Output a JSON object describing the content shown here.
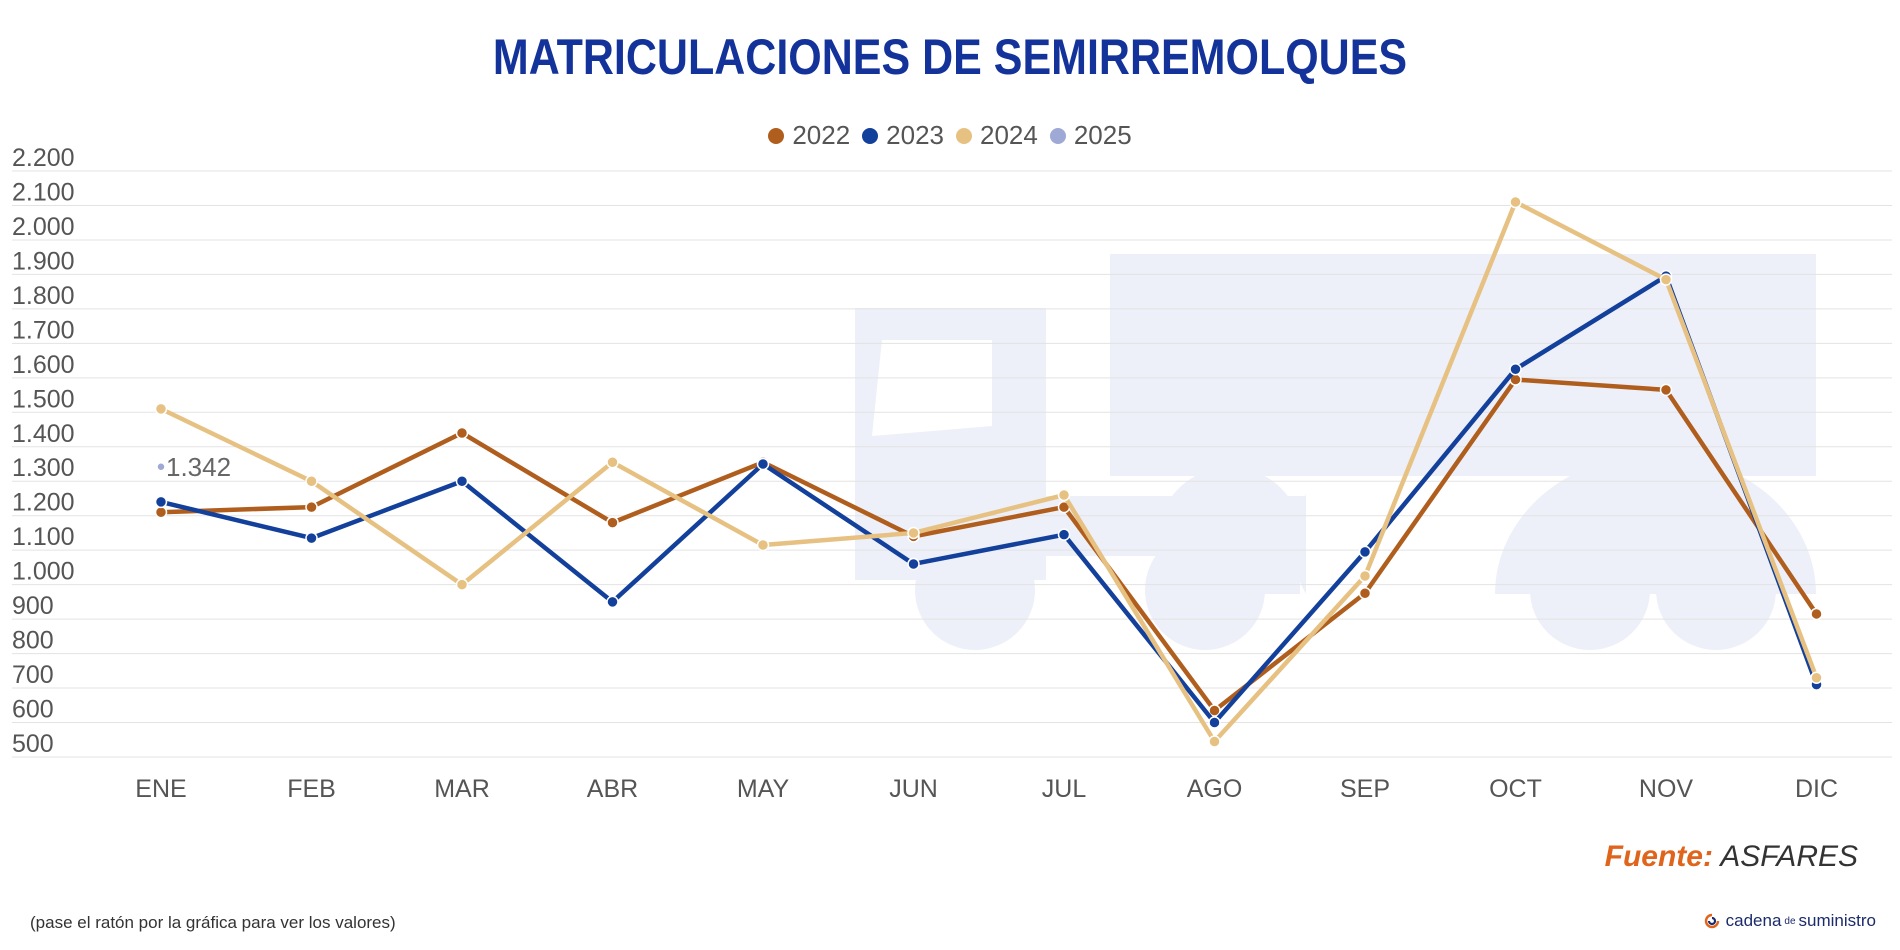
{
  "chart_data": {
    "type": "line",
    "title": "MATRICULACIONES DE SEMIRREMOLQUES",
    "categories": [
      "ENE",
      "FEB",
      "MAR",
      "ABR",
      "MAY",
      "JUN",
      "JUL",
      "AGO",
      "SEP",
      "OCT",
      "NOV",
      "DIC"
    ],
    "ylim": [
      500,
      2200
    ],
    "yticks": [
      500,
      600,
      700,
      800,
      900,
      1000,
      1100,
      1200,
      1300,
      1400,
      1500,
      1600,
      1700,
      1800,
      1900,
      2000,
      2100,
      2200
    ],
    "ytick_labels": [
      "500",
      "600",
      "700",
      "800",
      "900",
      "1.000",
      "1.100",
      "1.200",
      "1.300",
      "1.400",
      "1.500",
      "1.600",
      "1.700",
      "1.800",
      "1.900",
      "2.000",
      "2.100",
      "2.200"
    ],
    "grid": true,
    "legend_position": "top",
    "series": [
      {
        "name": "2022",
        "color": "#b05e1e",
        "values": [
          1210,
          1225,
          1440,
          1180,
          1355,
          1140,
          1225,
          635,
          975,
          1595,
          1565,
          915
        ]
      },
      {
        "name": "2023",
        "color": "#13409b",
        "values": [
          1240,
          1135,
          1300,
          950,
          1350,
          1060,
          1145,
          600,
          1095,
          1625,
          1895,
          710
        ]
      },
      {
        "name": "2024",
        "color": "#e6c182",
        "values": [
          1510,
          1300,
          1000,
          1355,
          1115,
          1150,
          1260,
          545,
          1025,
          2110,
          1885,
          730
        ]
      },
      {
        "name": "2025",
        "color": "#9fa9d6",
        "values": [
          1342,
          null,
          null,
          null,
          null,
          null,
          null,
          null,
          null,
          null,
          null,
          null
        ]
      }
    ],
    "annotations": [
      {
        "category": "ENE",
        "series": "2025",
        "text": "1.342"
      }
    ]
  },
  "source": {
    "label": "Fuente:",
    "value": "ASFARES"
  },
  "hint": "(pase el ratón por la gráfica para ver los valores)",
  "brand": {
    "name": "cadena",
    "small": "de",
    "name2": "suministro"
  }
}
